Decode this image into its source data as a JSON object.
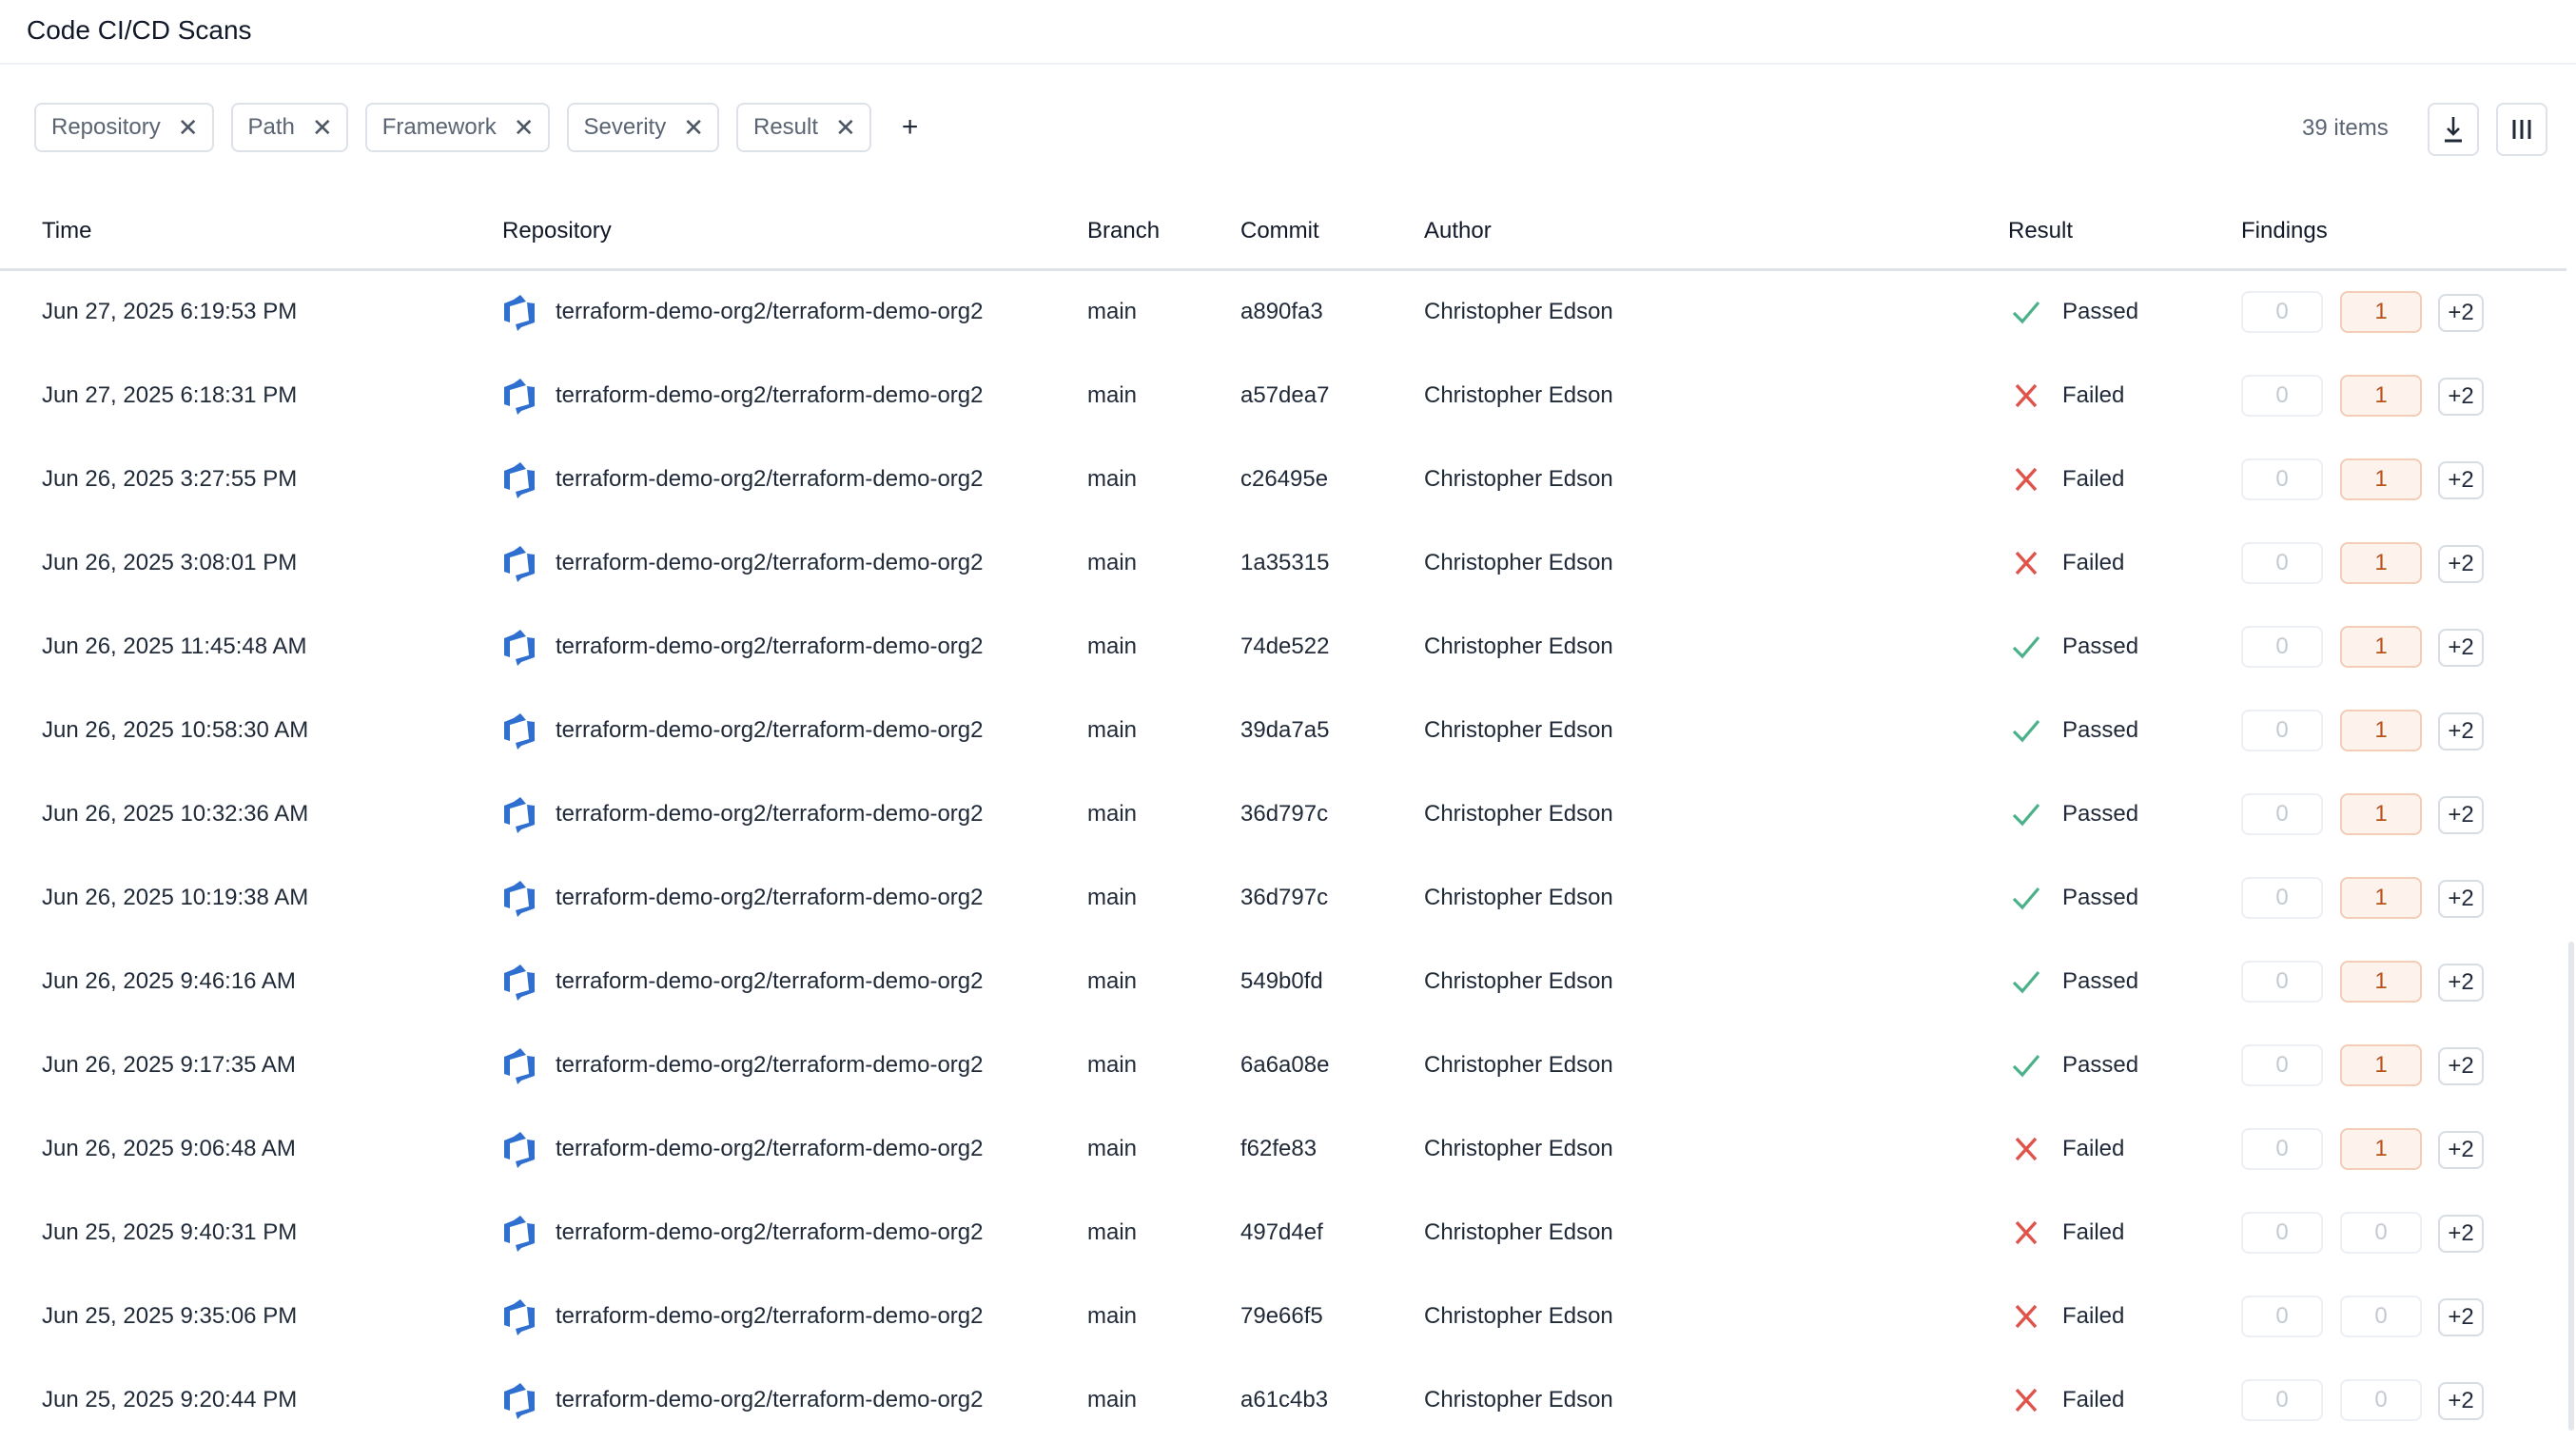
{
  "header": {
    "title": "Code CI/CD Scans"
  },
  "filters": [
    {
      "label": "Repository"
    },
    {
      "label": "Path"
    },
    {
      "label": "Framework"
    },
    {
      "label": "Severity"
    },
    {
      "label": "Result"
    }
  ],
  "toolbar": {
    "add_filter": "+",
    "item_count": "39 items",
    "download_icon": "download-icon",
    "columns_icon": "columns-icon"
  },
  "columns": {
    "time": "Time",
    "repository": "Repository",
    "branch": "Branch",
    "commit": "Commit",
    "author": "Author",
    "result": "Result",
    "findings": "Findings"
  },
  "colors": {
    "passed": "#4cb08a",
    "failed": "#e0524a",
    "finding_highlight": "#b4531a",
    "repo_icon": "#2f6fd0"
  },
  "rows": [
    {
      "time": "Jun 27, 2025 6:19:53 PM",
      "repository": "terraform-demo-org2/terraform-demo-org2",
      "branch": "main",
      "commit": "a890fa3",
      "author": "Christopher Edson",
      "result": "Passed",
      "findings": [
        "0",
        "1",
        "+2"
      ]
    },
    {
      "time": "Jun 27, 2025 6:18:31 PM",
      "repository": "terraform-demo-org2/terraform-demo-org2",
      "branch": "main",
      "commit": "a57dea7",
      "author": "Christopher Edson",
      "result": "Failed",
      "findings": [
        "0",
        "1",
        "+2"
      ]
    },
    {
      "time": "Jun 26, 2025 3:27:55 PM",
      "repository": "terraform-demo-org2/terraform-demo-org2",
      "branch": "main",
      "commit": "c26495e",
      "author": "Christopher Edson",
      "result": "Failed",
      "findings": [
        "0",
        "1",
        "+2"
      ]
    },
    {
      "time": "Jun 26, 2025 3:08:01 PM",
      "repository": "terraform-demo-org2/terraform-demo-org2",
      "branch": "main",
      "commit": "1a35315",
      "author": "Christopher Edson",
      "result": "Failed",
      "findings": [
        "0",
        "1",
        "+2"
      ]
    },
    {
      "time": "Jun 26, 2025 11:45:48 AM",
      "repository": "terraform-demo-org2/terraform-demo-org2",
      "branch": "main",
      "commit": "74de522",
      "author": "Christopher Edson",
      "result": "Passed",
      "findings": [
        "0",
        "1",
        "+2"
      ]
    },
    {
      "time": "Jun 26, 2025 10:58:30 AM",
      "repository": "terraform-demo-org2/terraform-demo-org2",
      "branch": "main",
      "commit": "39da7a5",
      "author": "Christopher Edson",
      "result": "Passed",
      "findings": [
        "0",
        "1",
        "+2"
      ]
    },
    {
      "time": "Jun 26, 2025 10:32:36 AM",
      "repository": "terraform-demo-org2/terraform-demo-org2",
      "branch": "main",
      "commit": "36d797c",
      "author": "Christopher Edson",
      "result": "Passed",
      "findings": [
        "0",
        "1",
        "+2"
      ]
    },
    {
      "time": "Jun 26, 2025 10:19:38 AM",
      "repository": "terraform-demo-org2/terraform-demo-org2",
      "branch": "main",
      "commit": "36d797c",
      "author": "Christopher Edson",
      "result": "Passed",
      "findings": [
        "0",
        "1",
        "+2"
      ]
    },
    {
      "time": "Jun 26, 2025 9:46:16 AM",
      "repository": "terraform-demo-org2/terraform-demo-org2",
      "branch": "main",
      "commit": "549b0fd",
      "author": "Christopher Edson",
      "result": "Passed",
      "findings": [
        "0",
        "1",
        "+2"
      ]
    },
    {
      "time": "Jun 26, 2025 9:17:35 AM",
      "repository": "terraform-demo-org2/terraform-demo-org2",
      "branch": "main",
      "commit": "6a6a08e",
      "author": "Christopher Edson",
      "result": "Passed",
      "findings": [
        "0",
        "1",
        "+2"
      ]
    },
    {
      "time": "Jun 26, 2025 9:06:48 AM",
      "repository": "terraform-demo-org2/terraform-demo-org2",
      "branch": "main",
      "commit": "f62fe83",
      "author": "Christopher Edson",
      "result": "Failed",
      "findings": [
        "0",
        "1",
        "+2"
      ]
    },
    {
      "time": "Jun 25, 2025 9:40:31 PM",
      "repository": "terraform-demo-org2/terraform-demo-org2",
      "branch": "main",
      "commit": "497d4ef",
      "author": "Christopher Edson",
      "result": "Failed",
      "findings": [
        "0",
        "0",
        "+2"
      ]
    },
    {
      "time": "Jun 25, 2025 9:35:06 PM",
      "repository": "terraform-demo-org2/terraform-demo-org2",
      "branch": "main",
      "commit": "79e66f5",
      "author": "Christopher Edson",
      "result": "Failed",
      "findings": [
        "0",
        "0",
        "+2"
      ]
    },
    {
      "time": "Jun 25, 2025 9:20:44 PM",
      "repository": "terraform-demo-org2/terraform-demo-org2",
      "branch": "main",
      "commit": "a61c4b3",
      "author": "Christopher Edson",
      "result": "Failed",
      "findings": [
        "0",
        "0",
        "+2"
      ]
    }
  ]
}
